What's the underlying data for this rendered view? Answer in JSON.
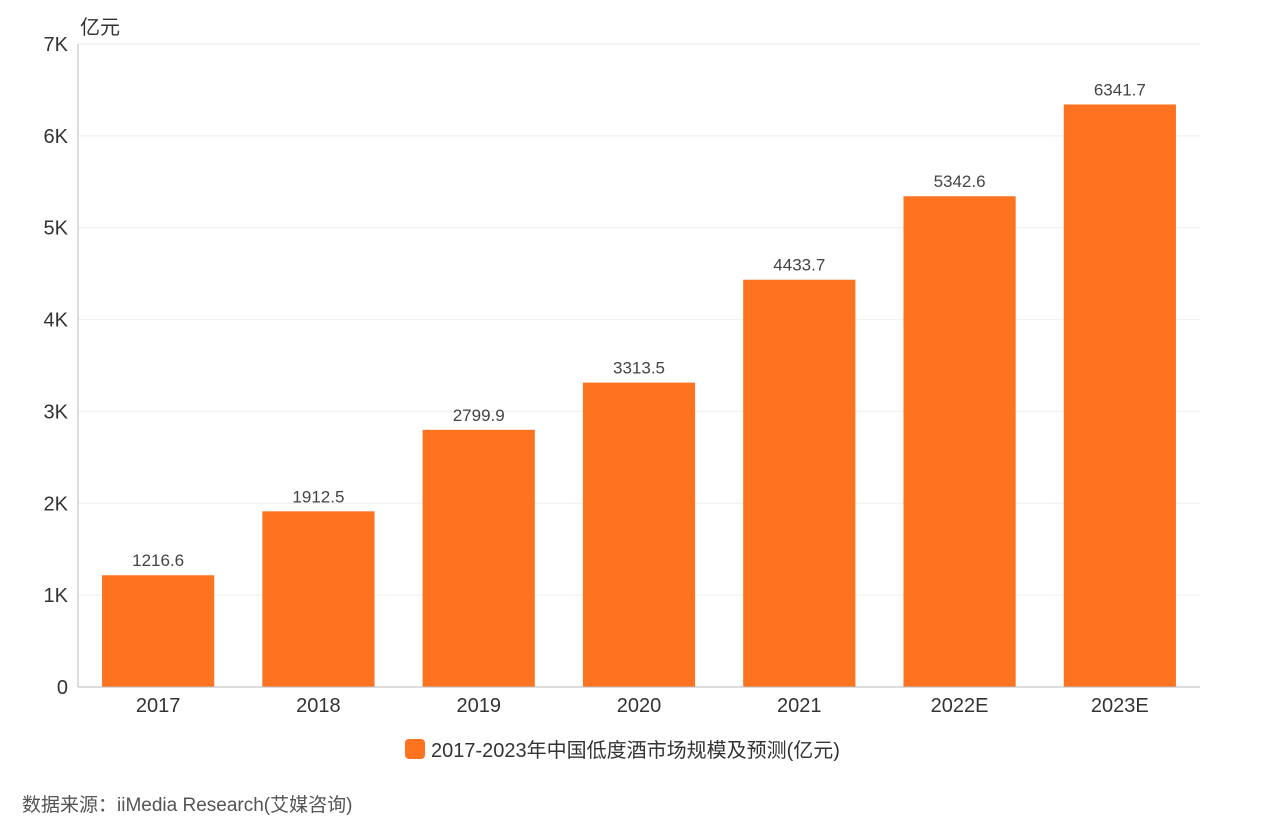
{
  "chart_data": {
    "type": "bar",
    "unit_label": "亿元",
    "categories": [
      "2017",
      "2018",
      "2019",
      "2020",
      "2021",
      "2022E",
      "2023E"
    ],
    "series": [
      {
        "name": "2017-2023年中国低度酒市场规模及预测(亿元)",
        "values": [
          1216.6,
          1912.5,
          2799.9,
          3313.5,
          4433.7,
          5342.6,
          6341.7
        ],
        "labels": [
          "1216.6",
          "1912.5",
          "2799.9",
          "3313.5",
          "4433.7",
          "5342.6",
          "6341.7"
        ]
      }
    ],
    "ylim": [
      0,
      7000
    ],
    "yticks": [
      0,
      1000,
      2000,
      3000,
      4000,
      5000,
      6000,
      7000
    ],
    "ytick_labels": [
      "0",
      "1K",
      "2K",
      "3K",
      "4K",
      "5K",
      "6K",
      "7K"
    ],
    "grid": true,
    "legend_position": "bottom-center",
    "colors": {
      "bar": "#FD7320",
      "grid": "#EEEEEE",
      "axis": "#BBBBBB",
      "text": "#333333"
    }
  },
  "source_text": "数据来源：iiMedia Research(艾媒咨询)"
}
